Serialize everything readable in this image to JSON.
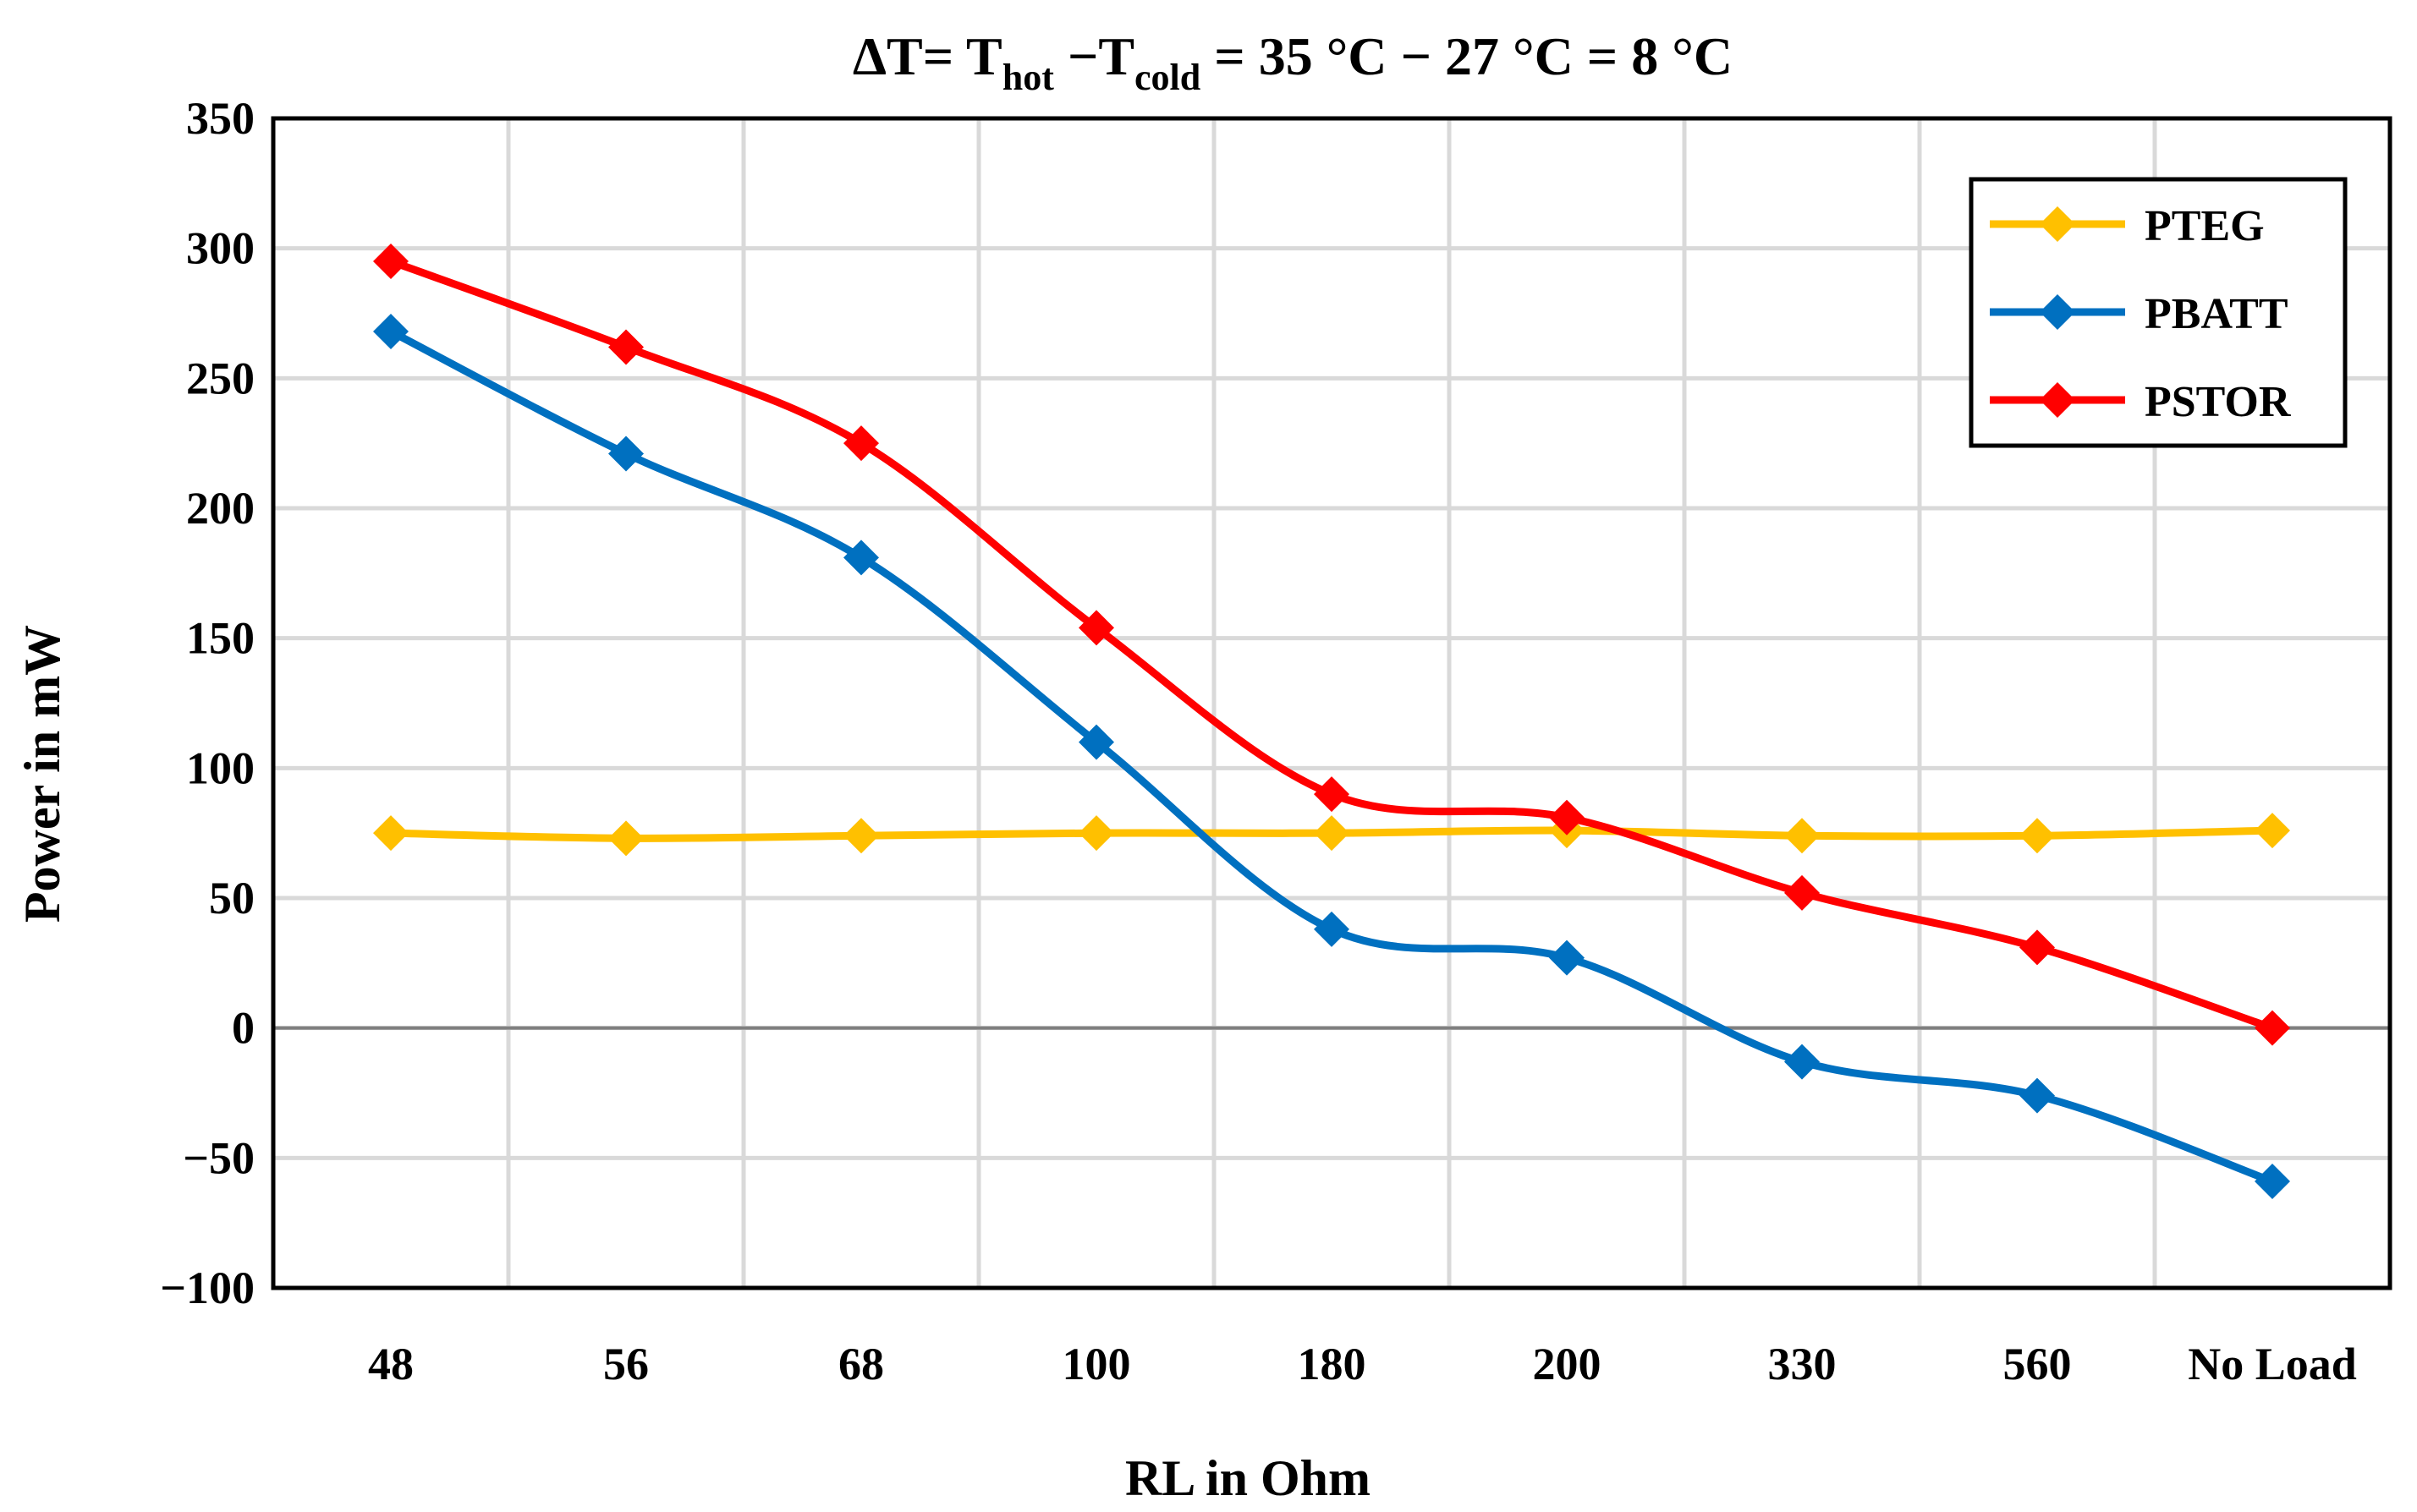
{
  "chart_data": {
    "type": "line",
    "title": {
      "prefix": "ΔT= T",
      "sub1": "hot",
      "middle": " −T",
      "sub2": "cold",
      "suffix": " =  35 °C − 27 °C = 8 °C"
    },
    "xlabel": "RL in Ohm",
    "ylabel": "Power in mW",
    "categories": [
      "48",
      "56",
      "68",
      "100",
      "180",
      "200",
      "330",
      "560",
      "No Load"
    ],
    "ylim": [
      -100,
      350
    ],
    "yticks": [
      -100,
      -50,
      0,
      50,
      100,
      150,
      200,
      250,
      300,
      350
    ],
    "ytick_labels": [
      "−100",
      "−50",
      "0",
      "50",
      "100",
      "150",
      "200",
      "250",
      "300",
      "350"
    ],
    "grid": true,
    "legend_position": "top-right",
    "series": [
      {
        "name": "PTEG",
        "color": "#FFC000",
        "values": [
          75,
          73,
          74,
          75,
          75,
          76,
          74,
          74,
          76
        ]
      },
      {
        "name": "PBATT",
        "color": "#0070C0",
        "values": [
          268,
          221,
          181,
          110,
          38,
          27,
          -13,
          -26,
          -59
        ]
      },
      {
        "name": "PSTOR",
        "color": "#FF0000",
        "values": [
          295,
          262,
          225,
          154,
          90,
          81,
          52,
          31,
          0
        ]
      }
    ]
  }
}
